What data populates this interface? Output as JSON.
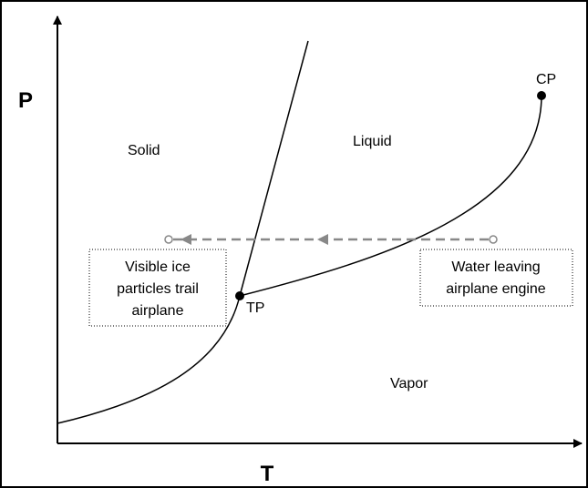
{
  "axes": {
    "y_label": "P",
    "x_label": "T"
  },
  "regions": {
    "solid": "Solid",
    "liquid": "Liquid",
    "vapor": "Vapor"
  },
  "points": {
    "triple": "TP",
    "critical": "CP"
  },
  "boxes": {
    "left": [
      "Visible ice",
      "particles trail",
      "airplane"
    ],
    "right": [
      "Water leaving",
      "airplane engine"
    ]
  }
}
